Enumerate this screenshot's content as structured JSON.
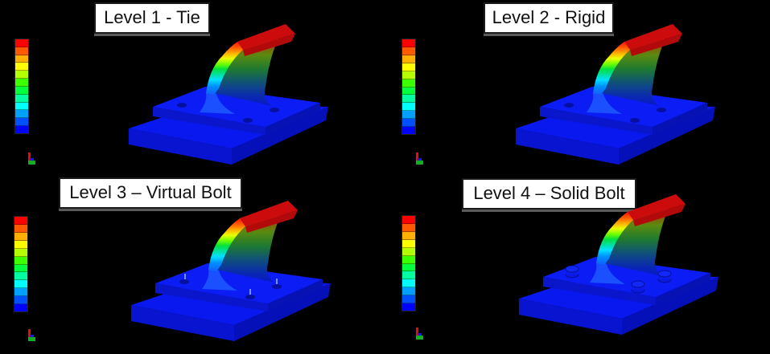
{
  "figure": {
    "panels": [
      {
        "id": "level1",
        "title": "Level 1 - Tie",
        "connection": "tie",
        "bolts": "none"
      },
      {
        "id": "level2",
        "title": "Level 2 - Rigid",
        "connection": "rigid",
        "bolts": "none"
      },
      {
        "id": "level3",
        "title": "Level 3 – Virtual Bolt",
        "connection": "virtual-bolt",
        "bolts": "virtual"
      },
      {
        "id": "level4",
        "title": "Level 4 – Solid Bolt",
        "connection": "solid-bolt",
        "bolts": "solid"
      }
    ],
    "legend": {
      "band_count": 12,
      "colors": [
        "#ff0000",
        "#ff5a00",
        "#ffb000",
        "#ffff00",
        "#b4ff00",
        "#3cff00",
        "#00ff3c",
        "#00ffa0",
        "#00ffff",
        "#00a0ff",
        "#0050ff",
        "#0000ff"
      ]
    },
    "colors": {
      "background": "#000000",
      "base_blue": "#0a14e8",
      "base_side": "#0b12c0",
      "tip_red": "#d81010",
      "title_bg": "#ffffff",
      "title_text": "#111111"
    }
  }
}
